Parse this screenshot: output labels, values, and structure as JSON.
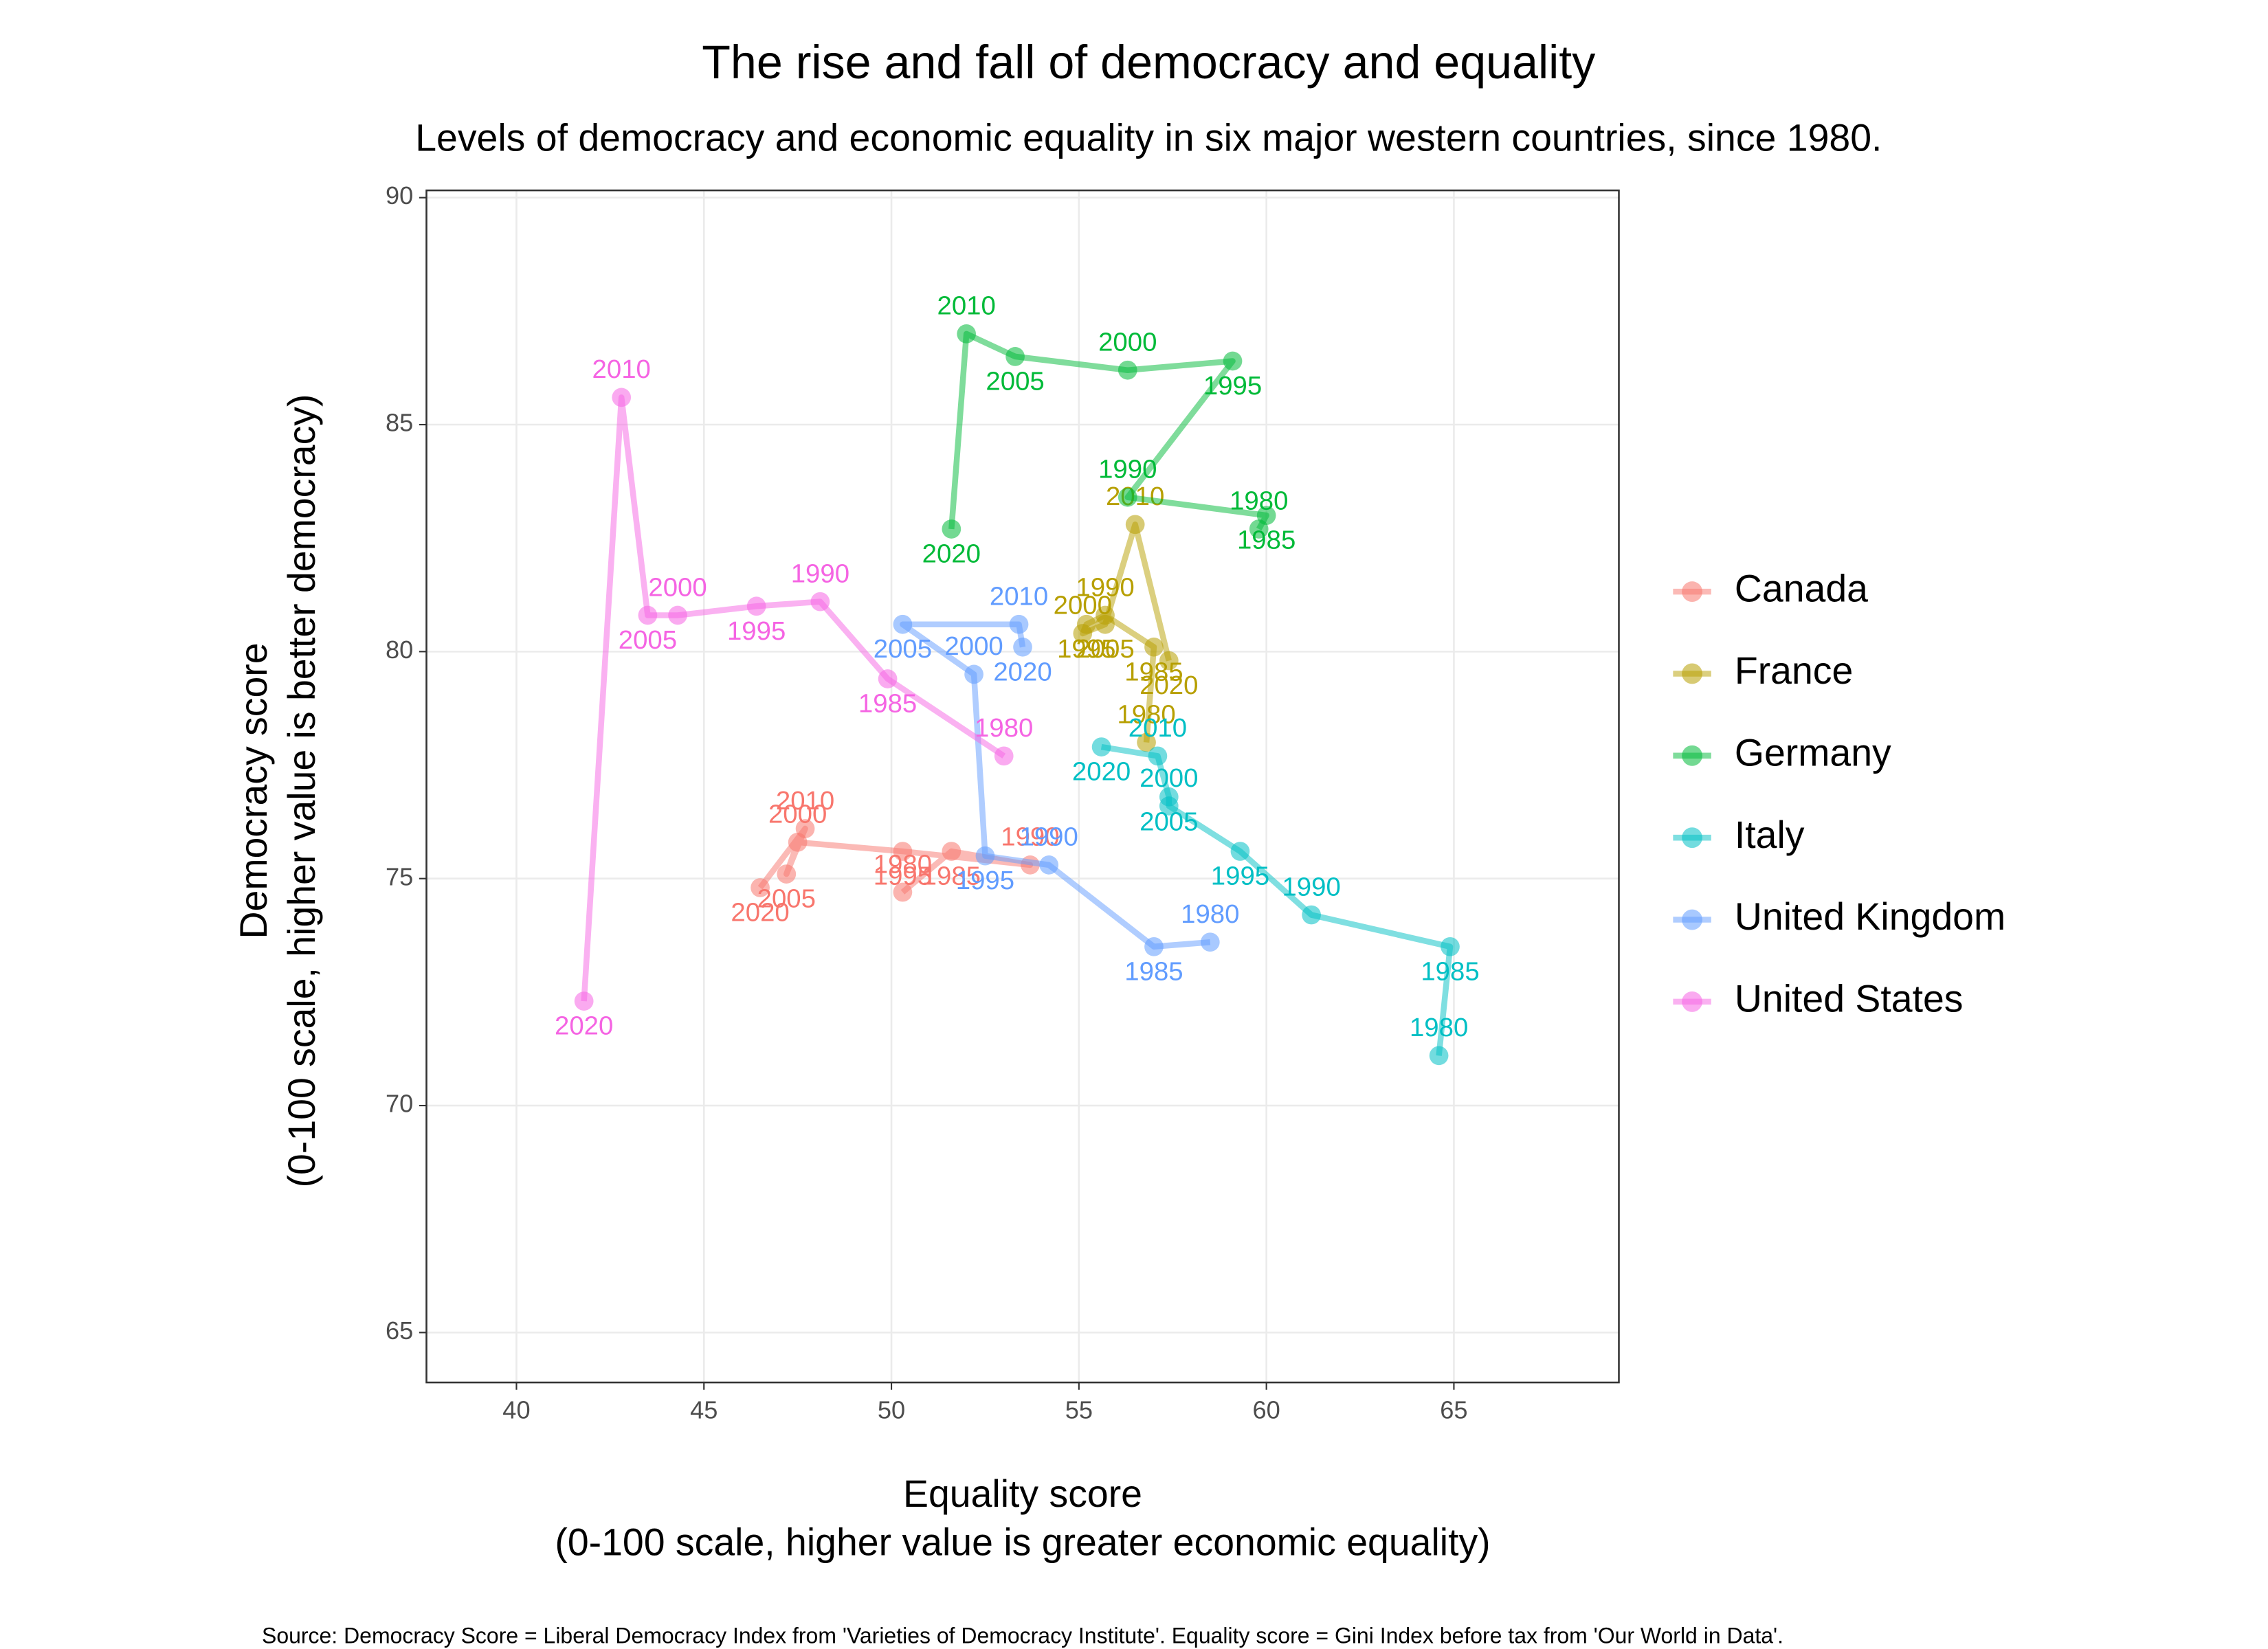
{
  "chart_data": {
    "type": "connected-scatter",
    "title": "The rise and fall of democracy and equality",
    "subtitle": "Levels of democracy and economic equality in six major western countries, since 1980.",
    "xlabel": [
      "Equality score",
      "(0-100 scale, higher value is greater economic equality)"
    ],
    "ylabel": [
      "Democracy score",
      "(0-100 scale, higher value is better democracy)"
    ],
    "source": "Source: Democracy Score = Liberal Democracy Index from 'Varieties of Democracy Institute'. Equality score = Gini Index before tax from 'Our World in Data'.",
    "xlim": [
      37.6,
      69.4
    ],
    "ylim": [
      63.9,
      90.16
    ],
    "xticks": [
      40,
      45,
      50,
      55,
      60,
      65
    ],
    "yticks": [
      65,
      70,
      75,
      80,
      85,
      90
    ],
    "grid": true,
    "legend": "right",
    "series": [
      {
        "name": "Canada",
        "color": "#F8766D",
        "labels": [
          "1980",
          "1985",
          "1990",
          "1995",
          "2000",
          "2005",
          "2010",
          "2020"
        ],
        "x": [
          50.3,
          51.6,
          53.7,
          50.3,
          47.5,
          47.2,
          47.7,
          46.5
        ],
        "values": [
          74.7,
          75.6,
          75.3,
          75.6,
          75.8,
          75.1,
          76.1,
          74.8
        ]
      },
      {
        "name": "France",
        "color": "#B79F00",
        "labels": [
          "1980",
          "1985",
          "1990",
          "1995",
          "2000",
          "2005",
          "2010",
          "2020"
        ],
        "x": [
          56.8,
          57.0,
          55.7,
          55.2,
          55.1,
          55.7,
          56.5,
          57.4
        ],
        "values": [
          78.0,
          80.1,
          80.8,
          80.6,
          80.4,
          80.6,
          82.8,
          79.8
        ]
      },
      {
        "name": "Germany",
        "color": "#00BA38",
        "labels": [
          "1980",
          "1985",
          "1990",
          "1995",
          "2000",
          "2005",
          "2010",
          "2020"
        ],
        "x": [
          59.8,
          60.0,
          56.3,
          59.1,
          56.3,
          53.3,
          52.0,
          51.6
        ],
        "values": [
          82.7,
          83.0,
          83.4,
          86.4,
          86.2,
          86.5,
          87.0,
          82.7
        ]
      },
      {
        "name": "Italy",
        "color": "#00BFC4",
        "labels": [
          "1980",
          "1985",
          "1990",
          "1995",
          "2000",
          "2005",
          "2010",
          "2020"
        ],
        "x": [
          64.6,
          64.9,
          61.2,
          59.3,
          57.4,
          57.4,
          57.1,
          55.6
        ],
        "values": [
          71.1,
          73.5,
          74.2,
          75.6,
          76.6,
          76.8,
          77.7,
          77.9
        ]
      },
      {
        "name": "United Kingdom",
        "color": "#619CFF",
        "labels": [
          "1980",
          "1985",
          "1990",
          "1995",
          "2000",
          "2005",
          "2010",
          "2020"
        ],
        "x": [
          58.5,
          57.0,
          54.2,
          52.5,
          52.2,
          50.3,
          53.4,
          53.5
        ],
        "values": [
          73.6,
          73.5,
          75.3,
          75.5,
          79.5,
          80.6,
          80.6,
          80.1
        ]
      },
      {
        "name": "United States",
        "color": "#F564E3",
        "labels": [
          "1980",
          "1985",
          "1990",
          "1995",
          "2000",
          "2005",
          "2010",
          "2020"
        ],
        "x": [
          53.0,
          49.9,
          48.1,
          46.4,
          44.3,
          43.5,
          42.8,
          41.8
        ],
        "values": [
          77.7,
          79.4,
          81.1,
          81.0,
          80.8,
          80.8,
          85.6,
          72.3
        ]
      }
    ]
  }
}
